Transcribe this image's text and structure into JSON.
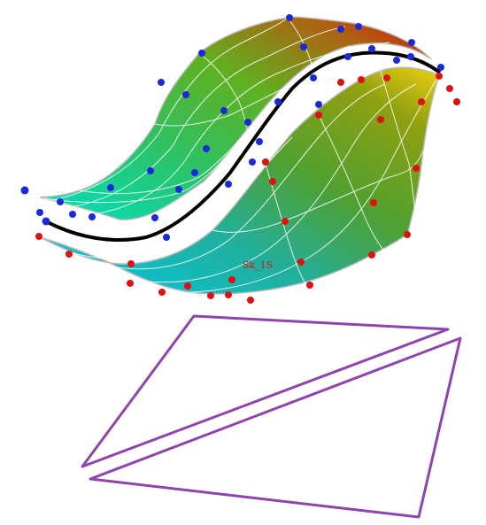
{
  "viewport": {
    "background": "#ffffff",
    "surface_label": "Sk_1S",
    "label_color": "#e01010"
  },
  "upper_surface": {
    "control_point_color": "#1020d0",
    "gradient": [
      "#00e0c0",
      "#30c060",
      "#60b020",
      "#b06010",
      "#d01010"
    ]
  },
  "lower_surface": {
    "control_point_color": "#e01010",
    "gradient": [
      "#00c8e0",
      "#20b0a0",
      "#50a030",
      "#90a010",
      "#f0d010"
    ]
  },
  "blend_curve": {
    "color": "#000000"
  },
  "projection_frames": {
    "color": "#8e44ad",
    "count": 2
  },
  "icons": [
    "control-point-icon",
    "surface-icon",
    "frame-icon"
  ]
}
